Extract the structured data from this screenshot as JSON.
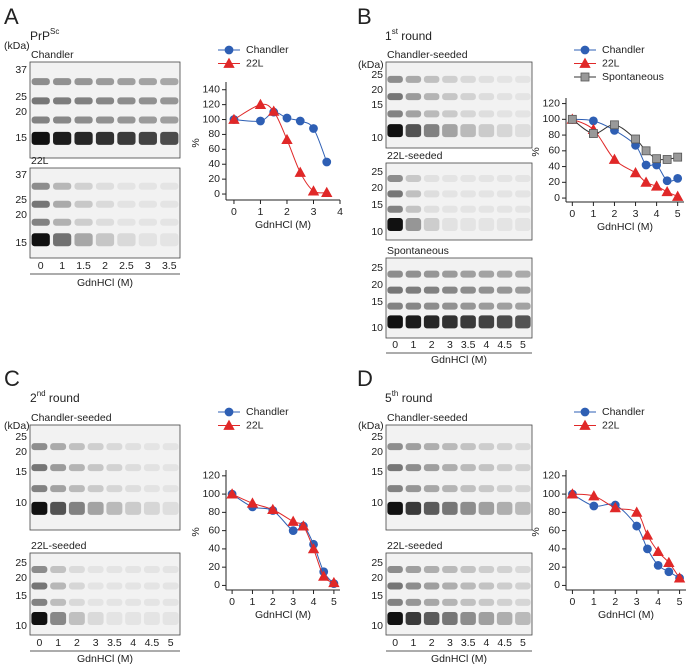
{
  "panels": [
    {
      "letter": "A",
      "heading": "PrP",
      "heading_sup": "Sc",
      "heading_rest": "",
      "kda": "(kDa)",
      "blots": [
        {
          "label": "Chandler",
          "mw": [
            "37",
            "25",
            "20",
            "15"
          ]
        },
        {
          "label": "22L",
          "mw": [
            "37",
            "25",
            "20",
            "15"
          ]
        }
      ],
      "lanes": [
        "0",
        "1",
        "1.5",
        "2",
        "2.5",
        "3",
        "3.5"
      ],
      "lane_axis": "GdnHCl (M)"
    },
    {
      "letter": "B",
      "heading": "1",
      "heading_sup": "st",
      "heading_rest": " round",
      "kda": "(kDa)",
      "blots": [
        {
          "label": "Chandler-seeded",
          "mw": [
            "25",
            "20",
            "15",
            "10"
          ]
        },
        {
          "label": "22L-seeded",
          "mw": [
            "25",
            "20",
            "15",
            "10"
          ]
        },
        {
          "label": "Spontaneous",
          "mw": [
            "25",
            "20",
            "15",
            "10"
          ]
        }
      ],
      "lanes": [
        "0",
        "1",
        "2",
        "3",
        "3.5",
        "4",
        "4.5",
        "5"
      ],
      "lane_axis": "GdnHCl (M)"
    },
    {
      "letter": "C",
      "heading": "2",
      "heading_sup": "nd",
      "heading_rest": " round",
      "kda": "(kDa)",
      "blots": [
        {
          "label": "Chandler-seeded",
          "mw": [
            "25",
            "20",
            "15",
            "10"
          ]
        },
        {
          "label": "22L-seeded",
          "mw": [
            "25",
            "20",
            "15",
            "10"
          ]
        }
      ],
      "lanes": [
        "0",
        "1",
        "2",
        "3",
        "3.5",
        "4",
        "4.5",
        "5"
      ],
      "lane_axis": "GdnHCl (M)"
    },
    {
      "letter": "D",
      "heading": "5",
      "heading_sup": "th",
      "heading_rest": " round",
      "kda": "(kDa)",
      "blots": [
        {
          "label": "Chandler-seeded",
          "mw": [
            "25",
            "20",
            "15",
            "10"
          ]
        },
        {
          "label": "22L-seeded",
          "mw": [
            "25",
            "20",
            "15",
            "10"
          ]
        }
      ],
      "lanes": [
        "0",
        "1",
        "2",
        "3",
        "3.5",
        "4",
        "4.5",
        "5"
      ],
      "lane_axis": "GdnHCl (M)"
    }
  ],
  "chart_data": [
    {
      "type": "line",
      "xlabel": "GdnHCl (M)",
      "ylabel": "%",
      "xlim": [
        -0.3,
        4
      ],
      "ylim": [
        -8,
        145
      ],
      "xticks": [
        0,
        1,
        2,
        3,
        4
      ],
      "yticks": [
        0,
        20,
        40,
        60,
        80,
        100,
        120,
        140
      ],
      "series": [
        {
          "name": "Chandler",
          "color": "#2e5fb4",
          "marker": "circle",
          "x": [
            0,
            1,
            1.5,
            2,
            2.5,
            3,
            3.5
          ],
          "values": [
            100,
            98,
            110,
            102,
            98,
            88,
            43
          ]
        },
        {
          "name": "22L",
          "color": "#e02828",
          "marker": "triangle",
          "x": [
            0,
            1,
            1.5,
            2,
            2.5,
            3,
            3.5
          ],
          "values": [
            100,
            120,
            111,
            73,
            29,
            4,
            2
          ]
        }
      ]
    },
    {
      "type": "line",
      "xlabel": "GdnHCl (M)",
      "ylabel": "%",
      "xlim": [
        -0.3,
        5.3
      ],
      "ylim": [
        -5,
        122
      ],
      "xticks": [
        0,
        1,
        2,
        3,
        4,
        5
      ],
      "yticks": [
        0,
        20,
        40,
        60,
        80,
        100,
        120
      ],
      "series": [
        {
          "name": "Chandler",
          "color": "#2e5fb4",
          "marker": "circle",
          "x": [
            0,
            1,
            2,
            3,
            3.5,
            4,
            4.5,
            5
          ],
          "values": [
            100,
            98,
            86,
            67,
            42,
            42,
            22,
            25
          ]
        },
        {
          "name": "22L",
          "color": "#e02828",
          "marker": "triangle",
          "x": [
            0,
            1,
            2,
            3,
            3.5,
            4,
            4.5,
            5
          ],
          "values": [
            100,
            87,
            49,
            32,
            20,
            15,
            8,
            2
          ]
        },
        {
          "name": "Spontaneous",
          "color": "#999999",
          "marker": "square",
          "x": [
            0,
            1,
            2,
            3,
            3.5,
            4,
            4.5,
            5
          ],
          "values": [
            100,
            82,
            93,
            75,
            60,
            50,
            49,
            52
          ]
        }
      ]
    },
    {
      "type": "line",
      "xlabel": "GdnHCl (M)",
      "ylabel": "%",
      "xlim": [
        -0.3,
        5.3
      ],
      "ylim": [
        -5,
        122
      ],
      "xticks": [
        0,
        1,
        2,
        3,
        4,
        5
      ],
      "yticks": [
        0,
        20,
        40,
        60,
        80,
        100,
        120
      ],
      "series": [
        {
          "name": "Chandler",
          "color": "#2e5fb4",
          "marker": "circle",
          "x": [
            0,
            1,
            2,
            3,
            3.5,
            4,
            4.5,
            5
          ],
          "values": [
            100,
            86,
            82,
            60,
            65,
            45,
            15,
            2
          ]
        },
        {
          "name": "22L",
          "color": "#e02828",
          "marker": "triangle",
          "x": [
            0,
            1,
            2,
            3,
            3.5,
            4,
            4.5,
            5
          ],
          "values": [
            100,
            90,
            83,
            70,
            65,
            40,
            10,
            3
          ]
        }
      ]
    },
    {
      "type": "line",
      "xlabel": "GdnHCl (M)",
      "ylabel": "%",
      "xlim": [
        -0.3,
        5.3
      ],
      "ylim": [
        -5,
        122
      ],
      "xticks": [
        0,
        1,
        2,
        3,
        4,
        5
      ],
      "yticks": [
        0,
        20,
        40,
        60,
        80,
        100,
        120
      ],
      "series": [
        {
          "name": "Chandler",
          "color": "#2e5fb4",
          "marker": "circle",
          "x": [
            0,
            1,
            2,
            3,
            3.5,
            4,
            4.5,
            5
          ],
          "values": [
            100,
            87,
            88,
            65,
            40,
            22,
            15,
            8
          ]
        },
        {
          "name": "22L",
          "color": "#e02828",
          "marker": "triangle",
          "x": [
            0,
            1,
            2,
            3,
            3.5,
            4,
            4.5,
            5
          ],
          "values": [
            100,
            98,
            85,
            80,
            55,
            37,
            25,
            8
          ]
        }
      ]
    }
  ]
}
